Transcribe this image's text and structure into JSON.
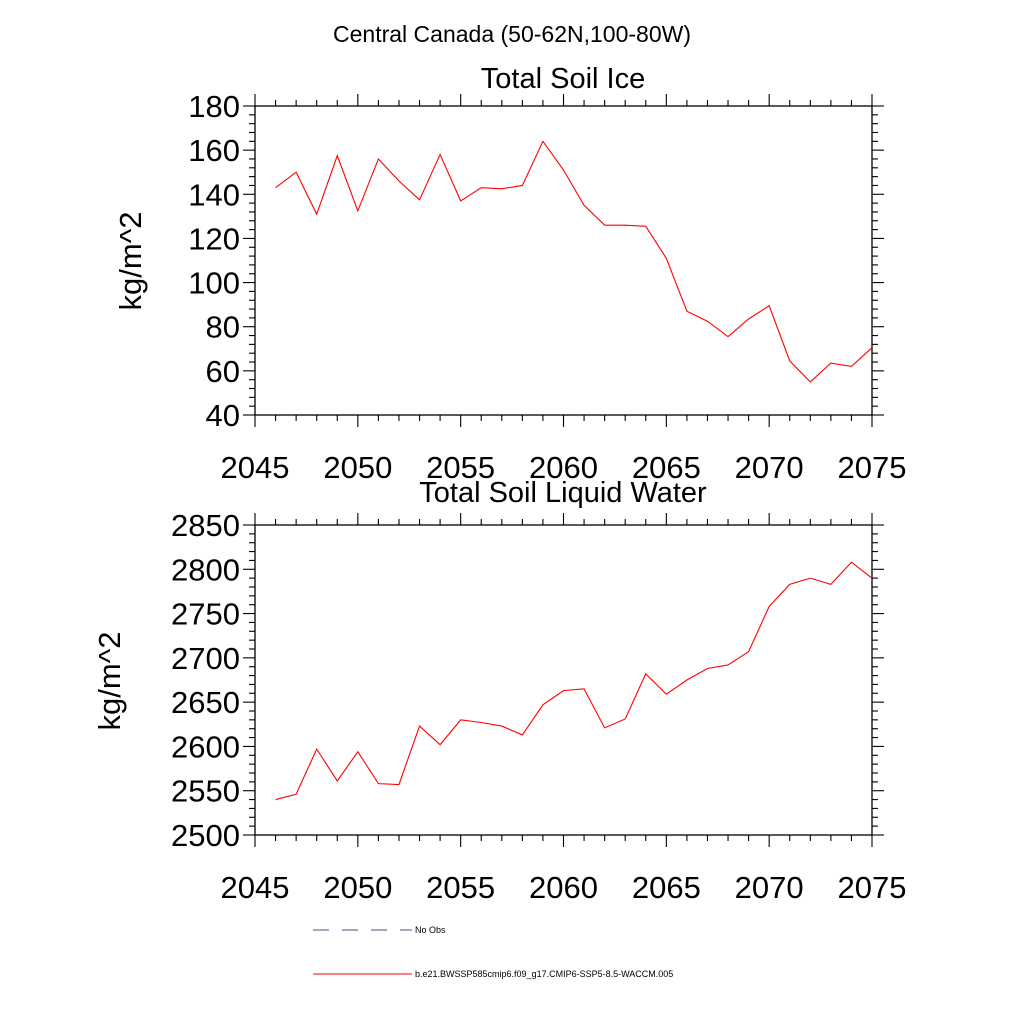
{
  "figure": {
    "main_title": "Central Canada (50-62N,100-80W)"
  },
  "legend": {
    "obs_label": "No Obs",
    "obs_color": "#4b4b9a",
    "model_label": "b.e21.BWSSP585cmip6.f09_g17.CMIP6-SSP5-8.5-WACCM.005",
    "model_color": "#ff0000"
  },
  "chart_data": [
    {
      "type": "line",
      "title": "Total Soil Ice",
      "xlabel": "",
      "ylabel": "kg/m^2",
      "xlim": [
        2045,
        2075
      ],
      "ylim": [
        40,
        180
      ],
      "x_ticks": [
        2045,
        2050,
        2055,
        2060,
        2065,
        2070,
        2075
      ],
      "y_ticks": [
        40,
        60,
        80,
        100,
        120,
        140,
        160,
        180
      ],
      "grid": false,
      "series": [
        {
          "color": "#ff0000",
          "x": [
            2046,
            2047,
            2048,
            2049,
            2050,
            2051,
            2052,
            2053,
            2054,
            2055,
            2056,
            2057,
            2058,
            2059,
            2060,
            2061,
            2062,
            2063,
            2064,
            2065,
            2066,
            2067,
            2068,
            2069,
            2070,
            2071,
            2072,
            2073,
            2074,
            2075
          ],
          "values": [
            143,
            150,
            131,
            157.5,
            132.5,
            156,
            146,
            137.5,
            158,
            137,
            143,
            142.5,
            144,
            164,
            151,
            135,
            126,
            126,
            125.5,
            111,
            87,
            82.5,
            75.5,
            83.5,
            89.5,
            64.5,
            55,
            63.5,
            62,
            70.5
          ]
        }
      ]
    },
    {
      "type": "line",
      "title": "Total Soil Liquid Water",
      "xlabel": "",
      "ylabel": "kg/m^2",
      "xlim": [
        2045,
        2075
      ],
      "ylim": [
        2500,
        2850
      ],
      "x_ticks": [
        2045,
        2050,
        2055,
        2060,
        2065,
        2070,
        2075
      ],
      "y_ticks": [
        2500,
        2550,
        2600,
        2650,
        2700,
        2750,
        2800,
        2850
      ],
      "grid": false,
      "series": [
        {
          "color": "#ff0000",
          "x": [
            2046,
            2047,
            2048,
            2049,
            2050,
            2051,
            2052,
            2053,
            2054,
            2055,
            2056,
            2057,
            2058,
            2059,
            2060,
            2061,
            2062,
            2063,
            2064,
            2065,
            2066,
            2067,
            2068,
            2069,
            2070,
            2071,
            2072,
            2073,
            2074,
            2075
          ],
          "values": [
            2540,
            2546,
            2597,
            2561,
            2594,
            2558,
            2557,
            2623,
            2602,
            2630,
            2627,
            2623,
            2613,
            2647,
            2663,
            2665,
            2621,
            2631,
            2682,
            2659,
            2675,
            2688,
            2692,
            2707,
            2758,
            2783,
            2790,
            2783,
            2808,
            2790
          ]
        }
      ]
    }
  ]
}
